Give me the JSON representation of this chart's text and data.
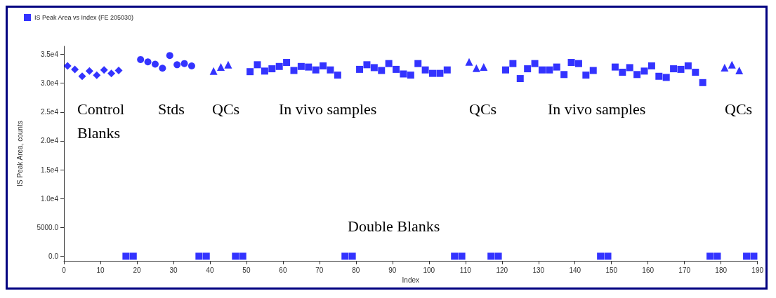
{
  "chart_data": {
    "type": "scatter",
    "xlabel": "Index",
    "ylabel": "IS Peak Area, counts",
    "xlim": [
      0,
      190
    ],
    "xticks": [
      0,
      10,
      20,
      30,
      40,
      50,
      60,
      70,
      80,
      90,
      100,
      110,
      120,
      130,
      140,
      150,
      160,
      170,
      180,
      190
    ],
    "ylim": [
      -800,
      36400
    ],
    "yticks": [
      {
        "value": 0,
        "label": "0.0"
      },
      {
        "value": 5000,
        "label": "5000.0"
      },
      {
        "value": 10000,
        "label": "1.0e4"
      },
      {
        "value": 15000,
        "label": "1.5e4"
      },
      {
        "value": 20000,
        "label": "2.0e4"
      },
      {
        "value": 25000,
        "label": "2.5e4"
      },
      {
        "value": 30000,
        "label": "3.0e4"
      },
      {
        "value": 35000,
        "label": "3.5e4"
      }
    ],
    "grid": false,
    "legend": "top left",
    "series": [
      {
        "marker": "diamond",
        "color": "#0000ff",
        "x": [
          1,
          3,
          5,
          7,
          9,
          11,
          13,
          15
        ],
        "values": [
          33000,
          32400,
          31200,
          32100,
          31400,
          32300,
          31700,
          32200
        ]
      },
      {
        "marker": "circle",
        "color": "#0000ff",
        "x": [
          21,
          23,
          25,
          27,
          29,
          31,
          33,
          35
        ],
        "values": [
          34100,
          33700,
          33300,
          32600,
          34800,
          33200,
          33400,
          33000
        ]
      },
      {
        "marker": "triangle",
        "color": "#0000ff",
        "x": [
          41,
          43,
          45,
          111,
          113,
          115,
          181,
          183,
          185
        ],
        "values": [
          32100,
          32800,
          33200,
          33700,
          32600,
          32800,
          32700,
          33200,
          32200
        ]
      },
      {
        "name": "IS Peak Area vs Index (FE 205030)",
        "marker": "square",
        "color": "#0000ff",
        "x": [
          17,
          19,
          37,
          39,
          47,
          49,
          51,
          53,
          55,
          57,
          59,
          61,
          63,
          65,
          67,
          69,
          71,
          73,
          75,
          77,
          79,
          81,
          83,
          85,
          87,
          89,
          91,
          93,
          95,
          97,
          99,
          101,
          103,
          105,
          107,
          109,
          117,
          119,
          121,
          123,
          125,
          127,
          129,
          131,
          133,
          135,
          137,
          139,
          141,
          143,
          145,
          147,
          149,
          151,
          153,
          155,
          157,
          159,
          161,
          163,
          165,
          167,
          169,
          171,
          173,
          175,
          177,
          179,
          187,
          189
        ],
        "values": [
          0,
          0,
          0,
          0,
          0,
          0,
          32000,
          33200,
          32100,
          32500,
          32900,
          33600,
          32200,
          32900,
          32800,
          32300,
          33000,
          32300,
          31400,
          0,
          0,
          32400,
          33200,
          32700,
          32200,
          33400,
          32400,
          31600,
          31400,
          33400,
          32300,
          31700,
          31700,
          32300,
          0,
          0,
          0,
          0,
          32300,
          33400,
          30800,
          32500,
          33400,
          32300,
          32300,
          32800,
          31500,
          33600,
          33400,
          31400,
          32200,
          0,
          0,
          32800,
          31900,
          32700,
          31500,
          32100,
          33000,
          31200,
          31000,
          32500,
          32400,
          33000,
          31900,
          30100,
          0,
          0,
          0,
          0
        ]
      }
    ],
    "annotations": [
      "Control\nBlanks",
      "Stds",
      "QCs",
      "In vivo samples",
      "QCs",
      "In vivo samples",
      "QCs",
      "Double Blanks"
    ]
  }
}
